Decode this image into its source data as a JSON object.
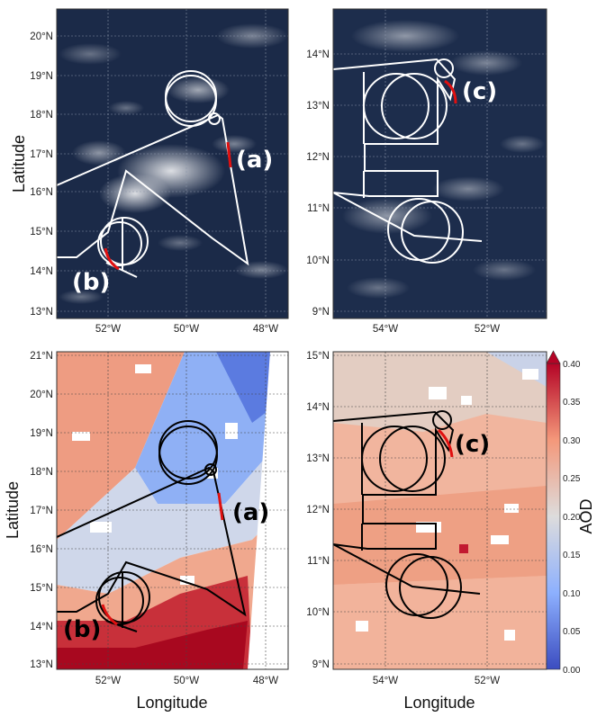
{
  "axes": {
    "xlabel": "Longitude",
    "ylabel": "Latitude"
  },
  "panels": {
    "top_left": {
      "type": "satellite_image",
      "x_ticks": [
        "52°W",
        "50°W",
        "48°W"
      ],
      "y_ticks": [
        "13°N",
        "14°N",
        "15°N",
        "16°N",
        "17°N",
        "18°N",
        "19°N",
        "20°N"
      ],
      "labels": [
        "(a)",
        "(b)"
      ]
    },
    "top_right": {
      "type": "satellite_image",
      "x_ticks": [
        "54°W",
        "52°W"
      ],
      "y_ticks": [
        "9°N",
        "10°N",
        "11°N",
        "12°N",
        "13°N",
        "14°N"
      ],
      "labels": [
        "(c)"
      ]
    },
    "bottom_left": {
      "type": "aod_map",
      "x_ticks": [
        "52°W",
        "50°W",
        "48°W"
      ],
      "y_ticks": [
        "13°N",
        "14°N",
        "15°N",
        "16°N",
        "17°N",
        "18°N",
        "19°N",
        "20°N",
        "21°N"
      ],
      "labels": [
        "(a)",
        "(b)"
      ]
    },
    "bottom_right": {
      "type": "aod_map",
      "x_ticks": [
        "54°W",
        "52°W"
      ],
      "y_ticks": [
        "9°N",
        "10°N",
        "11°N",
        "12°N",
        "13°N",
        "14°N",
        "15°N"
      ],
      "labels": [
        "(c)"
      ]
    }
  },
  "colorbar": {
    "label": "AOD",
    "ticks": [
      "0.00",
      "0.05",
      "0.10",
      "0.15",
      "0.20",
      "0.25",
      "0.30",
      "0.35",
      "0.40"
    ],
    "colormap": "coolwarm",
    "extend": "max"
  },
  "colors": {
    "flight_track_image": "#ffffff",
    "flight_track_map": "#000000",
    "highlight_segment": "#e01010",
    "ocean_image": "#1a2a4a",
    "aod_low": "#3a4cc0",
    "aod_mid": "#dddcdc",
    "aod_high": "#b40426"
  }
}
